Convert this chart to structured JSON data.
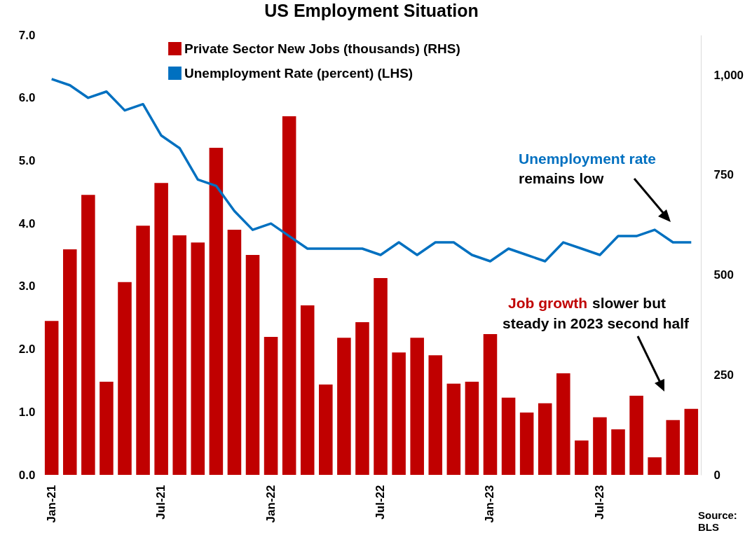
{
  "chart_data": {
    "type": "bar",
    "title": "US Employment Situation",
    "categories": [
      "Jan-21",
      null,
      null,
      null,
      null,
      null,
      "Jul-21",
      null,
      null,
      null,
      null,
      null,
      "Jan-22",
      null,
      null,
      null,
      null,
      null,
      "Jul-22",
      null,
      null,
      null,
      null,
      null,
      "Jan-23",
      null,
      null,
      null,
      null,
      null,
      "Jul-23",
      null,
      null,
      null,
      null,
      null
    ],
    "series": [
      {
        "name": "Private Sector New Jobs (thousands) (RHS)",
        "axis": "y2",
        "color": "#c00000",
        "values": [
          385,
          564,
          700,
          233,
          482,
          623,
          730,
          599,
          581,
          818,
          613,
          550,
          345,
          897,
          424,
          226,
          343,
          382,
          492,
          306,
          343,
          299,
          228,
          233,
          352,
          193,
          156,
          179,
          254,
          86,
          144,
          114,
          198,
          44,
          137,
          165
        ]
      },
      {
        "name": "Unemployment Rate (percent) (LHS)",
        "type": "line",
        "color": "#0070c0",
        "values": [
          6.3,
          6.2,
          6.0,
          6.1,
          5.8,
          5.9,
          5.4,
          5.2,
          4.7,
          4.6,
          4.2,
          3.9,
          4.0,
          3.8,
          3.6,
          3.6,
          3.6,
          3.6,
          3.5,
          3.7,
          3.5,
          3.7,
          3.7,
          3.5,
          3.4,
          3.6,
          3.5,
          3.4,
          3.7,
          3.6,
          3.5,
          3.8,
          3.8,
          3.9,
          3.7,
          3.7
        ]
      }
    ],
    "ylim": [
      0,
      7
    ],
    "yticks": [
      {
        "value": 0,
        "label": "0.0"
      },
      {
        "value": 1,
        "label": "1.0"
      },
      {
        "value": 2,
        "label": "2.0"
      },
      {
        "value": 3,
        "label": "3.0"
      },
      {
        "value": 4,
        "label": "4.0"
      },
      {
        "value": 5,
        "label": "5.0"
      },
      {
        "value": 6,
        "label": "6.0"
      },
      {
        "value": 7,
        "label": "7.0"
      }
    ],
    "y2lim": [
      0,
      1100
    ],
    "y2ticks": [
      0,
      250,
      500,
      750,
      {
        "value": 1000,
        "label": "1,000"
      }
    ],
    "legend": "top left",
    "annotations": [
      "Unemployment rate",
      "remains low",
      "Job growth",
      "slower but",
      "steady in 2023 second half",
      "Source: BLS"
    ]
  }
}
